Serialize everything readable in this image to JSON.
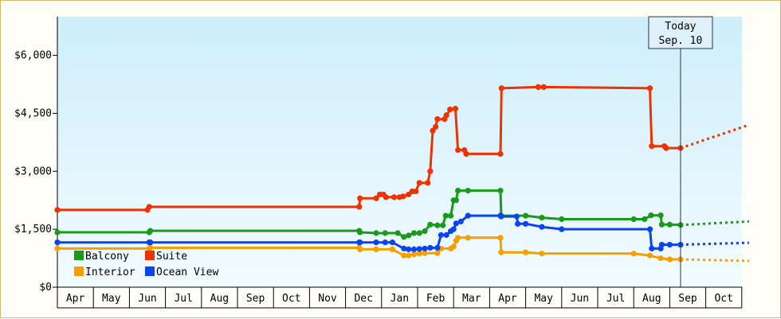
{
  "chart_data": {
    "type": "line",
    "title": "",
    "xlabel": "",
    "ylabel": "",
    "ylim": [
      0,
      7000
    ],
    "y_ticks": [
      {
        "value": 0,
        "label": "$0"
      },
      {
        "value": 1500,
        "label": "$1,500"
      },
      {
        "value": 3000,
        "label": "$3,000"
      },
      {
        "value": 4500,
        "label": "$4,500"
      },
      {
        "value": 6000,
        "label": "$6,000"
      }
    ],
    "x_months": [
      "Apr",
      "May",
      "Jun",
      "Jul",
      "Aug",
      "Sep",
      "Oct",
      "Nov",
      "Dec",
      "Jan",
      "Feb",
      "Mar",
      "Apr",
      "May",
      "Jun",
      "Jul",
      "Aug",
      "Sep",
      "Oct"
    ],
    "x_range_months": [
      0,
      19.2
    ],
    "step": true,
    "grid": false,
    "background_gradient": [
      "#cdeefb",
      "#f2fbff"
    ],
    "today_marker": {
      "x": 17.3,
      "line1": "Today",
      "line2": "Sep. 10"
    },
    "legend_position": "bottom-left",
    "series": [
      {
        "name": "Balcony",
        "color": "#1a9a1a",
        "points": [
          [
            0.0,
            1420
          ],
          [
            2.55,
            1420
          ],
          [
            2.58,
            1460
          ],
          [
            8.38,
            1460
          ],
          [
            8.4,
            1420
          ],
          [
            8.85,
            1400
          ],
          [
            9.1,
            1400
          ],
          [
            9.45,
            1400
          ],
          [
            9.62,
            1300
          ],
          [
            9.75,
            1340
          ],
          [
            9.9,
            1400
          ],
          [
            10.05,
            1400
          ],
          [
            10.2,
            1450
          ],
          [
            10.35,
            1620
          ],
          [
            10.55,
            1600
          ],
          [
            10.7,
            1600
          ],
          [
            10.78,
            1850
          ],
          [
            10.92,
            1850
          ],
          [
            11.0,
            2250
          ],
          [
            11.07,
            2250
          ],
          [
            11.12,
            2500
          ],
          [
            11.4,
            2500
          ],
          [
            12.3,
            2500
          ],
          [
            12.32,
            1850
          ],
          [
            13.0,
            1850
          ],
          [
            13.45,
            1800
          ],
          [
            14.0,
            1760
          ],
          [
            16.0,
            1760
          ],
          [
            16.3,
            1760
          ],
          [
            16.48,
            1860
          ],
          [
            16.75,
            1860
          ],
          [
            16.78,
            1620
          ],
          [
            17.0,
            1620
          ],
          [
            17.3,
            1610
          ]
        ],
        "forecast": [
          [
            17.3,
            1610
          ],
          [
            19.2,
            1700
          ]
        ]
      },
      {
        "name": "Suite",
        "color": "#ee3300",
        "points": [
          [
            0.0,
            2000
          ],
          [
            2.5,
            2000
          ],
          [
            2.55,
            2080
          ],
          [
            8.38,
            2080
          ],
          [
            8.4,
            2300
          ],
          [
            8.85,
            2300
          ],
          [
            8.95,
            2400
          ],
          [
            9.05,
            2400
          ],
          [
            9.12,
            2330
          ],
          [
            9.35,
            2330
          ],
          [
            9.5,
            2330
          ],
          [
            9.6,
            2350
          ],
          [
            9.75,
            2400
          ],
          [
            9.85,
            2480
          ],
          [
            9.95,
            2480
          ],
          [
            10.05,
            2700
          ],
          [
            10.28,
            2700
          ],
          [
            10.35,
            3000
          ],
          [
            10.42,
            4050
          ],
          [
            10.5,
            4150
          ],
          [
            10.55,
            4350
          ],
          [
            10.75,
            4350
          ],
          [
            10.8,
            4450
          ],
          [
            10.9,
            4600
          ],
          [
            11.05,
            4620
          ],
          [
            11.12,
            3550
          ],
          [
            11.3,
            3550
          ],
          [
            11.35,
            3450
          ],
          [
            12.3,
            3450
          ],
          [
            12.33,
            5150
          ],
          [
            13.35,
            5180
          ],
          [
            13.5,
            5180
          ],
          [
            16.45,
            5150
          ],
          [
            16.5,
            3650
          ],
          [
            16.85,
            3650
          ],
          [
            16.9,
            3600
          ],
          [
            17.3,
            3600
          ]
        ],
        "forecast": [
          [
            17.3,
            3600
          ],
          [
            19.2,
            4200
          ]
        ]
      },
      {
        "name": "Interior",
        "color": "#f5a000",
        "points": [
          [
            0.0,
            1000
          ],
          [
            2.55,
            1000
          ],
          [
            2.58,
            1020
          ],
          [
            8.38,
            1020
          ],
          [
            8.4,
            980
          ],
          [
            8.85,
            980
          ],
          [
            9.3,
            980
          ],
          [
            9.62,
            820
          ],
          [
            9.75,
            820
          ],
          [
            9.9,
            850
          ],
          [
            10.05,
            870
          ],
          [
            10.2,
            880
          ],
          [
            10.55,
            880
          ],
          [
            10.65,
            1000
          ],
          [
            10.92,
            1000
          ],
          [
            11.0,
            1050
          ],
          [
            11.07,
            1200
          ],
          [
            11.12,
            1280
          ],
          [
            11.4,
            1280
          ],
          [
            12.3,
            1280
          ],
          [
            12.32,
            900
          ],
          [
            13.0,
            900
          ],
          [
            13.45,
            870
          ],
          [
            16.0,
            870
          ],
          [
            16.45,
            820
          ],
          [
            16.75,
            750
          ],
          [
            17.0,
            720
          ],
          [
            17.3,
            720
          ]
        ],
        "forecast": [
          [
            17.3,
            720
          ],
          [
            19.2,
            680
          ]
        ]
      },
      {
        "name": "Ocean View",
        "color": "#0a44ee",
        "points": [
          [
            0.0,
            1160
          ],
          [
            2.55,
            1160
          ],
          [
            2.58,
            1160
          ],
          [
            8.38,
            1160
          ],
          [
            8.4,
            1160
          ],
          [
            8.85,
            1160
          ],
          [
            9.1,
            1160
          ],
          [
            9.3,
            1160
          ],
          [
            9.62,
            1000
          ],
          [
            9.75,
            980
          ],
          [
            9.9,
            980
          ],
          [
            10.05,
            990
          ],
          [
            10.2,
            1000
          ],
          [
            10.35,
            1020
          ],
          [
            10.55,
            1020
          ],
          [
            10.65,
            1350
          ],
          [
            10.8,
            1350
          ],
          [
            10.92,
            1450
          ],
          [
            11.0,
            1500
          ],
          [
            11.07,
            1650
          ],
          [
            11.2,
            1700
          ],
          [
            11.4,
            1850
          ],
          [
            12.3,
            1850
          ],
          [
            12.32,
            1830
          ],
          [
            12.75,
            1830
          ],
          [
            12.78,
            1640
          ],
          [
            13.0,
            1640
          ],
          [
            13.45,
            1560
          ],
          [
            14.0,
            1500
          ],
          [
            16.45,
            1500
          ],
          [
            16.5,
            1000
          ],
          [
            16.75,
            1000
          ],
          [
            16.78,
            1100
          ],
          [
            17.0,
            1100
          ],
          [
            17.3,
            1100
          ]
        ],
        "forecast": [
          [
            17.3,
            1100
          ],
          [
            19.2,
            1150
          ]
        ]
      }
    ]
  }
}
